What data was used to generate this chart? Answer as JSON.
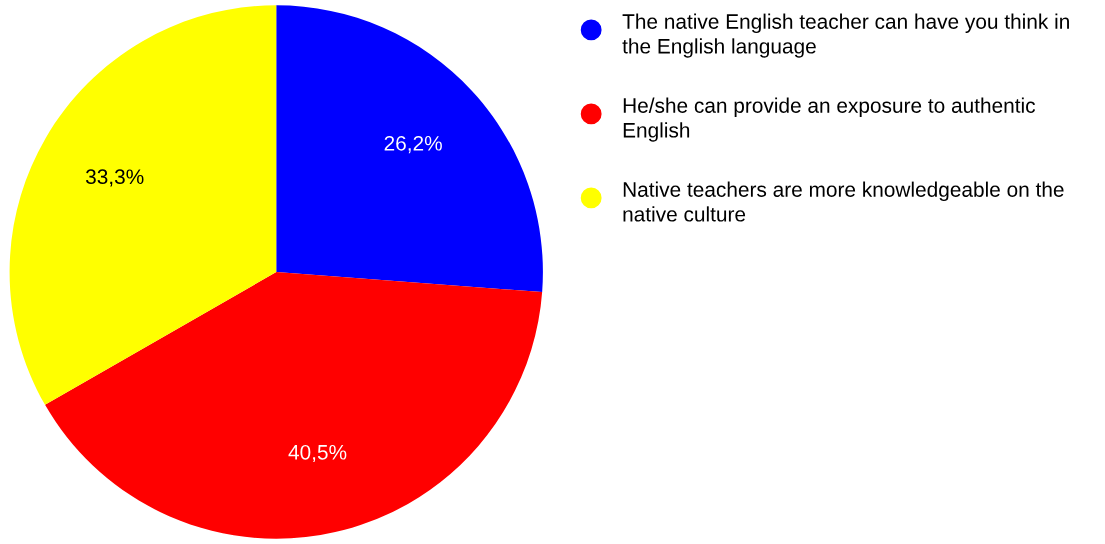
{
  "chart_data": {
    "type": "pie",
    "categories": [
      "The native English teacher can have you think in the English language",
      "He/she can provide an exposure to authentic English",
      "Native teachers are more knowledgeable on the native culture"
    ],
    "values": [
      26.2,
      40.5,
      33.3
    ],
    "colors": [
      "#0000ff",
      "#ff0000",
      "#ffff00"
    ],
    "value_labels": [
      "26,2%",
      "40,5%",
      "33,3%"
    ],
    "legend": "top right"
  }
}
